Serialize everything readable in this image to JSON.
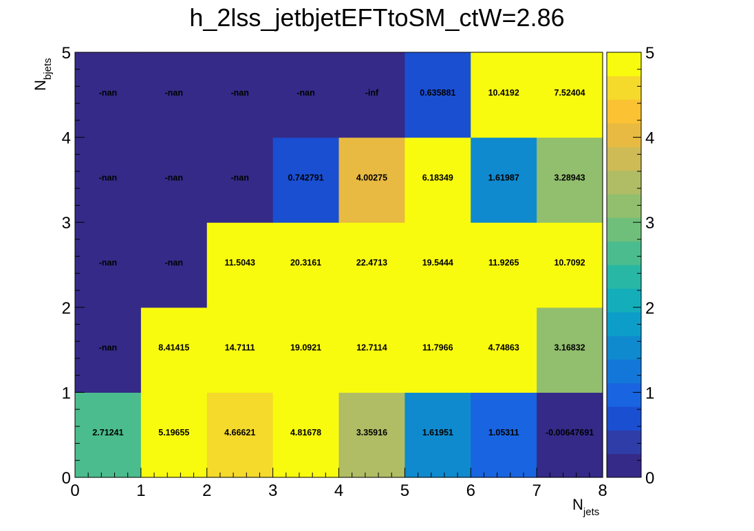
{
  "chart_data": {
    "type": "heatmap",
    "title": "h_2lss_jetbjetEFTtoSM_ctW=2.86",
    "xlabel": {
      "main": "N",
      "sub": "jets"
    },
    "ylabel": {
      "main": "N",
      "sub": "bjets"
    },
    "x_edges": [
      0,
      1,
      2,
      3,
      4,
      5,
      6,
      7,
      8
    ],
    "y_edges": [
      0,
      1,
      2,
      3,
      4,
      5
    ],
    "x_tick_labels": [
      "0",
      "1",
      "2",
      "3",
      "4",
      "5",
      "6",
      "7",
      "8"
    ],
    "y_tick_labels": [
      "0",
      "1",
      "2",
      "3",
      "4",
      "5"
    ],
    "zlim": [
      0,
      5
    ],
    "z_tick_labels": [
      "0",
      "1",
      "2",
      "3",
      "4",
      "5"
    ],
    "colormap": [
      "#352a87",
      "#2f3da8",
      "#1a4fd2",
      "#1964e0",
      "#1377d9",
      "#0f8acf",
      "#0c9ec9",
      "#14aebb",
      "#27b7a4",
      "#4bbc8d",
      "#6fbf7b",
      "#92bf6e",
      "#b1bd64",
      "#cebb56",
      "#e8ba41",
      "#fbc234",
      "#f5d92b",
      "#f9fb0e"
    ],
    "cells": [
      {
        "label": "2.71241",
        "value": 2.71241
      },
      {
        "label": "5.19655",
        "value": 5.19655
      },
      {
        "label": "4.66621",
        "value": 4.66621
      },
      {
        "label": "4.81678",
        "value": 4.81678
      },
      {
        "label": "3.35916",
        "value": 3.35916
      },
      {
        "label": "1.61951",
        "value": 1.61951
      },
      {
        "label": "1.05311",
        "value": 1.05311
      },
      {
        "label": "-0.00647691",
        "value": -0.00647691
      },
      {
        "label": "-nan",
        "value": null
      },
      {
        "label": "8.41415",
        "value": 8.41415
      },
      {
        "label": "14.7111",
        "value": 14.7111
      },
      {
        "label": "19.0921",
        "value": 19.0921
      },
      {
        "label": "12.7114",
        "value": 12.7114
      },
      {
        "label": "11.7966",
        "value": 11.7966
      },
      {
        "label": "4.74863",
        "value": 4.74863
      },
      {
        "label": "3.16832",
        "value": 3.16832
      },
      {
        "label": "-nan",
        "value": null
      },
      {
        "label": "-nan",
        "value": null
      },
      {
        "label": "11.5043",
        "value": 11.5043
      },
      {
        "label": "20.3161",
        "value": 20.3161
      },
      {
        "label": "22.4713",
        "value": 22.4713
      },
      {
        "label": "19.5444",
        "value": 19.5444
      },
      {
        "label": "11.9265",
        "value": 11.9265
      },
      {
        "label": "10.7092",
        "value": 10.7092
      },
      {
        "label": "-nan",
        "value": null
      },
      {
        "label": "-nan",
        "value": null
      },
      {
        "label": "-nan",
        "value": null
      },
      {
        "label": "0.742791",
        "value": 0.742791
      },
      {
        "label": "4.00275",
        "value": 4.00275
      },
      {
        "label": "6.18349",
        "value": 6.18349
      },
      {
        "label": "1.61987",
        "value": 1.61987
      },
      {
        "label": "3.28943",
        "value": 3.28943
      },
      {
        "label": "-nan",
        "value": null
      },
      {
        "label": "-nan",
        "value": null
      },
      {
        "label": "-nan",
        "value": null
      },
      {
        "label": "-nan",
        "value": null
      },
      {
        "label": "-inf",
        "value": null
      },
      {
        "label": "0.635881",
        "value": 0.635881
      },
      {
        "label": "10.4192",
        "value": 10.4192
      },
      {
        "label": "7.52404",
        "value": 7.52404
      }
    ]
  }
}
